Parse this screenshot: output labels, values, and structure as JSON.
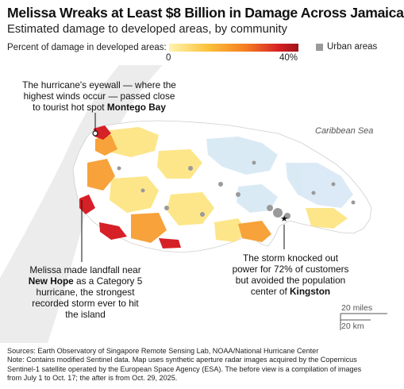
{
  "title": "Melissa Wreaks at Least $8 Billion in Damage Across Jamaica",
  "subtitle": "Estimated damage to developed areas, by community",
  "legend": {
    "label": "Percent of damage in developed areas:",
    "min": "0",
    "max": "40%",
    "urban_label": "Urban areas",
    "colors": [
      "#fff4b0",
      "#fcc23a",
      "#f47b20",
      "#d62027",
      "#9e1318"
    ],
    "urban_color": "#9a9a9a"
  },
  "map": {
    "sea_label": "Caribbean Sea",
    "annotations": {
      "montego": {
        "line1": "The hurricane's eyewall — where the",
        "line2": "highest winds occur — passed close",
        "line3a": "to tourist hot spot ",
        "line3b": "Montego Bay"
      },
      "newhope": {
        "line1": "Melissa made landfall near",
        "line2a": "New Hope",
        "line2b": " as a Category 5",
        "line3": "hurricane, the strongest",
        "line4": "recorded storm ever to hit",
        "line5": "the island"
      },
      "kingston": {
        "line1": "The storm knocked out",
        "line2": "power for 72% of customers",
        "line3": "but avoided the population",
        "line4a": "center of ",
        "line4b": "Kingston"
      }
    },
    "scale_miles": "20 miles",
    "scale_km": "20 km"
  },
  "footer": {
    "sources": "Sources: Earth Observatory of Singapore Remote Sensing Lab, NOAA/National Hurricane Center",
    "note1": "Note: Contains modified Sentinel data. Map uses synthetic aperture radar images acquired by the Copernicus",
    "note2": "Sentinel-1 satellite operated by the European Space Agency (ESA). The before view is a compilation of images",
    "note3": "from July 1 to Oct. 17; the after is from Oct. 29, 2025."
  }
}
